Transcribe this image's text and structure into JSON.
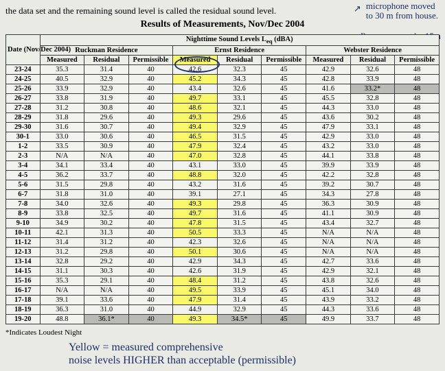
{
  "intro_text": "the data set and the remaining sound level is called the residual sound level.",
  "title": "Results of Measurements, Nov/Dec 2004",
  "handwriting": {
    "top_right1": "microphone moved",
    "top_right2": "to 30 m from house.",
    "regs": "Regs say must be 15m",
    "bottom1": "Yellow = measured comprehensive",
    "bottom2": "noise levels HIGHER than acceptable (permissible)"
  },
  "footnote": "*Indicates Loudest Night",
  "headers": {
    "date": "Date (Nov/Dec 2004)",
    "night": "Nighttime Sound Levels L",
    "night_sub": "eq",
    "night_unit": " (dBA)",
    "res1": "Ruckman Residence",
    "res2": "Ernst Residence",
    "res3": "Webster Residence",
    "meas": "Measured",
    "resid": "Residual",
    "perm": "Permissible"
  },
  "rows": [
    {
      "d": "23-24",
      "r1": [
        "35.3",
        "31.4",
        "40"
      ],
      "r2": [
        "42.6",
        "32.3",
        "45"
      ],
      "r3": [
        "42.9",
        "32.6",
        "48"
      ],
      "hl2": 0
    },
    {
      "d": "24-25",
      "r1": [
        "40.5",
        "32.9",
        "40"
      ],
      "r2": [
        "45.2",
        "34.3",
        "45"
      ],
      "r3": [
        "42.8",
        "33.9",
        "48"
      ],
      "hl2": 1
    },
    {
      "d": "25-26",
      "r1": [
        "33.9",
        "32.9",
        "40"
      ],
      "r2": [
        "43.4",
        "32.6",
        "45"
      ],
      "r3": [
        "41.6",
        "33.2*",
        "48"
      ],
      "hl2": 0,
      "shade": [
        8,
        9
      ]
    },
    {
      "d": "26-27",
      "r1": [
        "33.8",
        "31.9",
        "40"
      ],
      "r2": [
        "49.7",
        "33.1",
        "45"
      ],
      "r3": [
        "45.5",
        "32.8",
        "48"
      ],
      "hl2": 1
    },
    {
      "d": "27-28",
      "r1": [
        "31.2",
        "30.8",
        "40"
      ],
      "r2": [
        "48.6",
        "32.1",
        "45"
      ],
      "r3": [
        "44.3",
        "33.0",
        "48"
      ],
      "hl2": 1
    },
    {
      "d": "28-29",
      "r1": [
        "31.8",
        "29.6",
        "40"
      ],
      "r2": [
        "49.3",
        "29.6",
        "45"
      ],
      "r3": [
        "43.6",
        "30.2",
        "48"
      ],
      "hl2": 1
    },
    {
      "d": "29-30",
      "r1": [
        "31.6",
        "30.7",
        "40"
      ],
      "r2": [
        "49.4",
        "32.9",
        "45"
      ],
      "r3": [
        "47.9",
        "33.1",
        "48"
      ],
      "hl2": 1
    },
    {
      "d": "30-1",
      "r1": [
        "33.0",
        "30.6",
        "40"
      ],
      "r2": [
        "46.5",
        "31.5",
        "45"
      ],
      "r3": [
        "42.9",
        "33.0",
        "48"
      ],
      "hl2": 1
    },
    {
      "d": "1-2",
      "r1": [
        "33.5",
        "30.9",
        "40"
      ],
      "r2": [
        "47.9",
        "32.4",
        "45"
      ],
      "r3": [
        "43.2",
        "33.0",
        "48"
      ],
      "hl2": 1
    },
    {
      "d": "2-3",
      "r1": [
        "N/A",
        "N/A",
        "40"
      ],
      "r2": [
        "47.0",
        "32.8",
        "45"
      ],
      "r3": [
        "44.1",
        "33.8",
        "48"
      ],
      "hl2": 1
    },
    {
      "d": "3-4",
      "r1": [
        "34.1",
        "33.4",
        "40"
      ],
      "r2": [
        "43.1",
        "33.0",
        "45"
      ],
      "r3": [
        "39.9",
        "33.9",
        "48"
      ],
      "hl2": 0
    },
    {
      "d": "4-5",
      "r1": [
        "36.2",
        "33.7",
        "40"
      ],
      "r2": [
        "48.8",
        "32.0",
        "45"
      ],
      "r3": [
        "42.2",
        "32.8",
        "48"
      ],
      "hl2": 1
    },
    {
      "d": "5-6",
      "r1": [
        "31.5",
        "29.8",
        "40"
      ],
      "r2": [
        "43.2",
        "31.6",
        "45"
      ],
      "r3": [
        "39.2",
        "30.7",
        "48"
      ],
      "hl2": 0
    },
    {
      "d": "6-7",
      "r1": [
        "31.8",
        "31.0",
        "40"
      ],
      "r2": [
        "39.1",
        "27.1",
        "45"
      ],
      "r3": [
        "34.3",
        "27.8",
        "48"
      ],
      "hl2": 0
    },
    {
      "d": "7-8",
      "r1": [
        "34.0",
        "32.6",
        "40"
      ],
      "r2": [
        "49.3",
        "29.8",
        "45"
      ],
      "r3": [
        "36.3",
        "30.9",
        "48"
      ],
      "hl2": 1
    },
    {
      "d": "8-9",
      "r1": [
        "33.8",
        "32.5",
        "40"
      ],
      "r2": [
        "49.7",
        "31.6",
        "45"
      ],
      "r3": [
        "41.1",
        "30.9",
        "48"
      ],
      "hl2": 1
    },
    {
      "d": "9-10",
      "r1": [
        "34.9",
        "30.2",
        "40"
      ],
      "r2": [
        "47.8",
        "31.5",
        "45"
      ],
      "r3": [
        "43.4",
        "32.7",
        "48"
      ],
      "hl2": 1
    },
    {
      "d": "10-11",
      "r1": [
        "42.1",
        "31.3",
        "40"
      ],
      "r2": [
        "50.5",
        "33.3",
        "45"
      ],
      "r3": [
        "N/A",
        "N/A",
        "48"
      ],
      "hl2": 1
    },
    {
      "d": "11-12",
      "r1": [
        "31.4",
        "31.2",
        "40"
      ],
      "r2": [
        "42.3",
        "32.6",
        "45"
      ],
      "r3": [
        "N/A",
        "N/A",
        "48"
      ],
      "hl2": 0
    },
    {
      "d": "12-13",
      "r1": [
        "31.2",
        "29.8",
        "40"
      ],
      "r2": [
        "50.1",
        "30.6",
        "45"
      ],
      "r3": [
        "N/A",
        "N/A",
        "48"
      ],
      "hl2": 1
    },
    {
      "d": "13-14",
      "r1": [
        "32.8",
        "29.2",
        "40"
      ],
      "r2": [
        "42.9",
        "34.3",
        "45"
      ],
      "r3": [
        "42.7",
        "33.6",
        "48"
      ],
      "hl2": 0
    },
    {
      "d": "14-15",
      "r1": [
        "31.1",
        "30.3",
        "40"
      ],
      "r2": [
        "42.6",
        "31.9",
        "45"
      ],
      "r3": [
        "42.9",
        "32.1",
        "48"
      ],
      "hl2": 0
    },
    {
      "d": "15-16",
      "r1": [
        "35.3",
        "29.1",
        "40"
      ],
      "r2": [
        "48.4",
        "31.2",
        "45"
      ],
      "r3": [
        "43.8",
        "32.6",
        "48"
      ],
      "hl2": 1
    },
    {
      "d": "16-17",
      "r1": [
        "N/A",
        "N/A",
        "40"
      ],
      "r2": [
        "49.5",
        "33.9",
        "45"
      ],
      "r3": [
        "45.1",
        "34.0",
        "48"
      ],
      "hl2": 1
    },
    {
      "d": "17-18",
      "r1": [
        "39.1",
        "33.6",
        "40"
      ],
      "r2": [
        "47.9",
        "31.4",
        "45"
      ],
      "r3": [
        "43.9",
        "33.2",
        "48"
      ],
      "hl2": 1
    },
    {
      "d": "18-19",
      "r1": [
        "36.3",
        "31.0",
        "40"
      ],
      "r2": [
        "44.9",
        "32.9",
        "45"
      ],
      "r3": [
        "44.3",
        "33.6",
        "48"
      ],
      "hl2": 0
    },
    {
      "d": "19-20",
      "r1": [
        "48.8",
        "36.1*",
        "40"
      ],
      "r2": [
        "49.3",
        "34.5*",
        "45"
      ],
      "r3": [
        "49.9",
        "33.7",
        "48"
      ],
      "hl2": 1,
      "shade": [
        2,
        3,
        5,
        6
      ]
    }
  ]
}
